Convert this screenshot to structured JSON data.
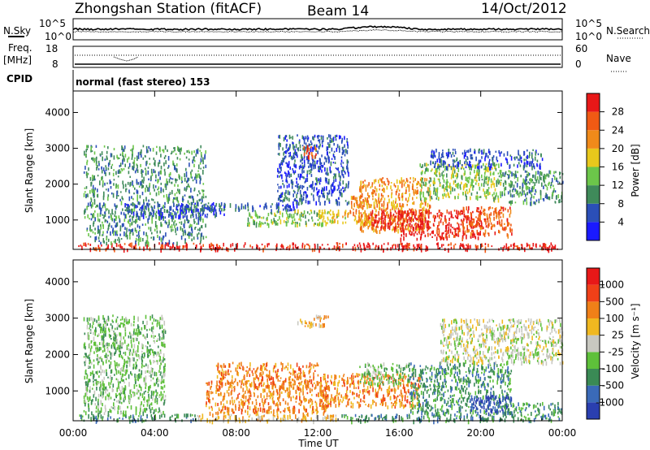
{
  "header": {
    "station": "Zhongshan Station (fitACF)",
    "beam": "Beam 14",
    "date": "14/Oct/2012"
  },
  "top_panels": {
    "nsky_label": "N.Sky",
    "nsky_ticks": [
      "10^5",
      "10^0"
    ],
    "nsearch_label": "N.Search",
    "nsearch_ticks": [
      "10^5",
      "10^0"
    ],
    "freq_label": "Freq.",
    "freq_unit": "[MHz]",
    "freq_ticks": [
      "18",
      "8"
    ],
    "nave_label": "Nave",
    "nave_ticks": [
      "60",
      "0"
    ],
    "cpid_label": "CPID",
    "cpid_value": "normal (fast stereo) 153"
  },
  "chart_data": [
    {
      "type": "heatmap",
      "name": "power-panel",
      "ylabel": "Slant Range [km]",
      "xlabel": "Time UT",
      "x_ticks": [
        "00:00",
        "04:00",
        "08:00",
        "12:00",
        "16:00",
        "20:00",
        "00:00"
      ],
      "xlim_hours": [
        0,
        24
      ],
      "y_ticks": [
        1000,
        2000,
        3000,
        4000
      ],
      "ylim_km": [
        180,
        4600
      ],
      "colorbar": {
        "label": "Power [dB]",
        "ticks": [
          "4",
          "8",
          "12",
          "16",
          "20",
          "24",
          "28"
        ],
        "range": [
          0,
          30
        ],
        "colors": [
          "#1a1aff",
          "#2b4fb8",
          "#3f8a5a",
          "#6cc64a",
          "#e8c81c",
          "#f08a1a",
          "#f05a14",
          "#e81818"
        ]
      },
      "regions": [
        {
          "t0": 0.2,
          "t1": 24,
          "r0": 200,
          "r1": 380,
          "level": 7
        },
        {
          "t0": 0.5,
          "t1": 6.5,
          "r0": 380,
          "r1": 3100,
          "level": 2
        },
        {
          "t0": 2.5,
          "t1": 7.5,
          "r0": 1100,
          "r1": 1500,
          "level": 1
        },
        {
          "t0": 5.5,
          "t1": 11,
          "r0": 1300,
          "r1": 1500,
          "level": 1
        },
        {
          "t0": 8.5,
          "t1": 12.5,
          "r0": 900,
          "r1": 1300,
          "level": 3
        },
        {
          "t0": 10,
          "t1": 13.5,
          "r0": 1500,
          "r1": 3400,
          "level": 1
        },
        {
          "t0": 11.3,
          "t1": 11.9,
          "r0": 2800,
          "r1": 3100,
          "level": 6
        },
        {
          "t0": 12,
          "t1": 13.5,
          "r0": 900,
          "r1": 1300,
          "level": 4
        },
        {
          "t0": 13.5,
          "t1": 14.5,
          "r0": 900,
          "r1": 1700,
          "level": 5
        },
        {
          "t0": 14,
          "t1": 17.5,
          "r0": 700,
          "r1": 2200,
          "level": 5
        },
        {
          "t0": 14.5,
          "t1": 17.5,
          "r0": 800,
          "r1": 1300,
          "level": 7
        },
        {
          "t0": 16,
          "t1": 20,
          "r0": 500,
          "r1": 1300,
          "level": 7
        },
        {
          "t0": 17,
          "t1": 21,
          "r0": 1600,
          "r1": 2600,
          "level": 3
        },
        {
          "t0": 17.5,
          "t1": 23,
          "r0": 2500,
          "r1": 3000,
          "level": 1
        },
        {
          "t0": 19,
          "t1": 21.5,
          "r0": 600,
          "r1": 1400,
          "level": 6
        },
        {
          "t0": 21,
          "t1": 24,
          "r0": 1500,
          "r1": 2400,
          "level": 2
        }
      ]
    },
    {
      "type": "heatmap",
      "name": "velocity-panel",
      "ylabel": "Slant Range [km]",
      "xlabel": "Time UT",
      "x_ticks": [
        "00:00",
        "04:00",
        "08:00",
        "12:00",
        "16:00",
        "20:00",
        "00:00"
      ],
      "xlim_hours": [
        0,
        24
      ],
      "y_ticks": [
        1000,
        2000,
        3000,
        4000
      ],
      "ylim_km": [
        180,
        4600
      ],
      "colorbar": {
        "label": "Velocity [m s⁻¹]",
        "ticks": [
          "1000",
          "500",
          "100",
          "25",
          "-25",
          "-100",
          "-500",
          "-1000"
        ],
        "range": [
          -1000,
          1000
        ],
        "colors": [
          "#2a3fb0",
          "#3a6ab8",
          "#3a8a55",
          "#5ec03a",
          "#c8c8c0",
          "#f0b820",
          "#f08018",
          "#f04018",
          "#e81818"
        ]
      },
      "regions": [
        {
          "t0": 0.2,
          "t1": 6,
          "r0": 200,
          "r1": 380,
          "level": 2
        },
        {
          "t0": 6,
          "t1": 13,
          "r0": 200,
          "r1": 380,
          "level": 5
        },
        {
          "t0": 13,
          "t1": 24,
          "r0": 200,
          "r1": 380,
          "level": 2
        },
        {
          "t0": 0.5,
          "t1": 4.5,
          "r0": 400,
          "r1": 3100,
          "level": 3
        },
        {
          "t0": 6.5,
          "t1": 12.5,
          "r0": 400,
          "r1": 1300,
          "level": 6
        },
        {
          "t0": 7,
          "t1": 12,
          "r0": 1200,
          "r1": 1800,
          "level": 6
        },
        {
          "t0": 11,
          "t1": 12.5,
          "r0": 2800,
          "r1": 3100,
          "level": 5
        },
        {
          "t0": 12,
          "t1": 17,
          "r0": 600,
          "r1": 1500,
          "level": 6
        },
        {
          "t0": 14,
          "t1": 16.5,
          "r0": 1200,
          "r1": 1800,
          "level": 3
        },
        {
          "t0": 16.5,
          "t1": 21.5,
          "r0": 400,
          "r1": 1800,
          "level": 2
        },
        {
          "t0": 19.5,
          "t1": 21.5,
          "r0": 400,
          "r1": 900,
          "level": 0
        },
        {
          "t0": 18,
          "t1": 24,
          "r0": 1800,
          "r1": 3000,
          "level": 4
        },
        {
          "t0": 21,
          "t1": 24,
          "r0": 400,
          "r1": 700,
          "level": 2
        }
      ]
    }
  ]
}
